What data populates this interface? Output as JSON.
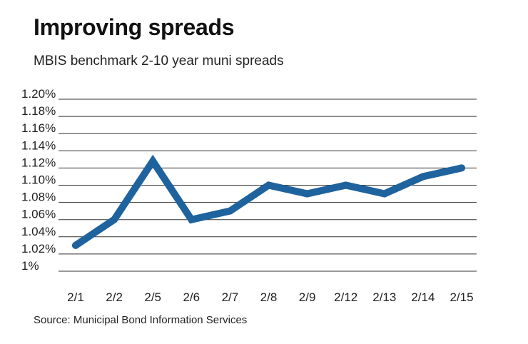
{
  "title": "Improving spreads",
  "subtitle": "MBIS benchmark 2-10 year muni spreads",
  "source": "Source: Municipal Bond Information Services",
  "chart_data": {
    "type": "line",
    "title": "Improving spreads",
    "subtitle": "MBIS benchmark 2-10 year muni spreads",
    "categories": [
      "2/1",
      "2/2",
      "2/5",
      "2/6",
      "2/7",
      "2/8",
      "2/9",
      "2/12",
      "2/13",
      "2/14",
      "2/15"
    ],
    "series": [
      {
        "values": [
          1.03,
          1.06,
          1.128,
          1.06,
          1.07,
          1.1,
          1.09,
          1.1,
          1.09,
          1.11,
          1.12
        ]
      }
    ],
    "ylim": [
      1.0,
      1.2
    ],
    "ytick_values": [
      1.2,
      1.18,
      1.16,
      1.14,
      1.12,
      1.1,
      1.08,
      1.06,
      1.04,
      1.02,
      1.0
    ],
    "ytick_labels": [
      "1.20%",
      "1.18%",
      "1.16%",
      "1.14%",
      "1.12%",
      "1.10%",
      "1.08%",
      "1.06%",
      "1.04%",
      "1.02%",
      "1%"
    ],
    "grid": true,
    "legend": "none",
    "line_color": "#1f639e",
    "grid_color": "#333333"
  }
}
